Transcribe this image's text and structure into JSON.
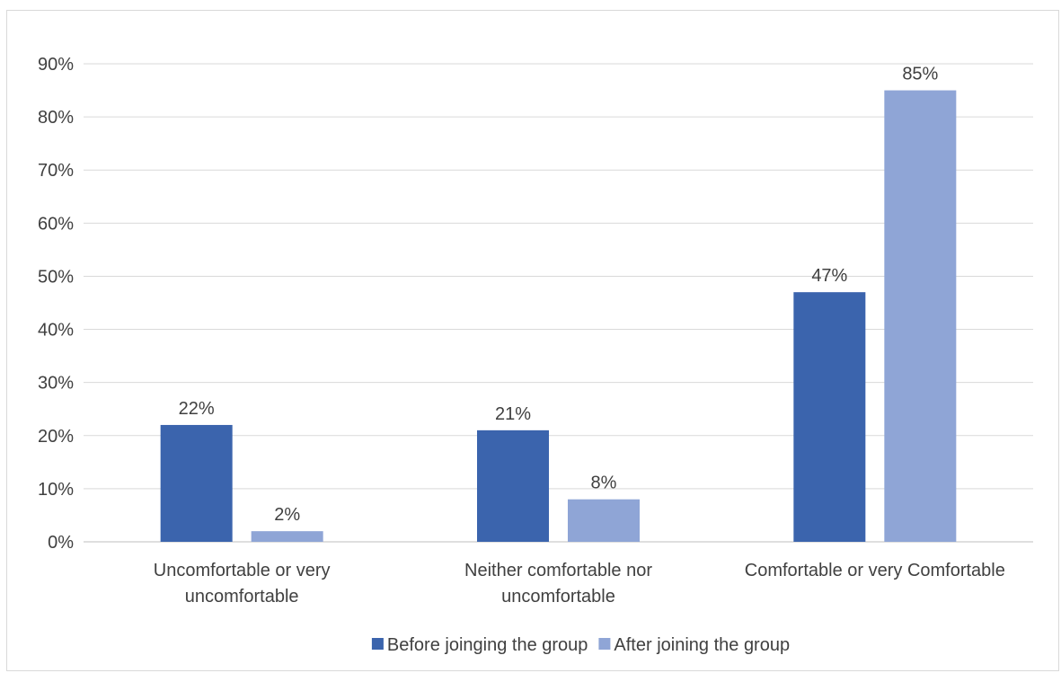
{
  "chart_data": {
    "type": "bar",
    "categories": [
      [
        "Uncomfortable or very",
        "uncomfortable"
      ],
      [
        "Neither comfortable nor",
        "uncomfortable"
      ],
      [
        "Comfortable or very Comfortable"
      ]
    ],
    "series": [
      {
        "name": "Before joinging the group",
        "values": [
          22,
          21,
          47
        ],
        "labels": [
          "22%",
          "21%",
          "47%"
        ],
        "color": "#3b64ad"
      },
      {
        "name": "After joining the group",
        "values": [
          2,
          8,
          85
        ],
        "labels": [
          "2%",
          "8%",
          "85%"
        ],
        "color": "#8fa5d6"
      }
    ],
    "ylim": [
      0,
      90
    ],
    "yticks": [
      0,
      10,
      20,
      30,
      40,
      50,
      60,
      70,
      80,
      90
    ],
    "ytick_labels": [
      "0%",
      "10%",
      "20%",
      "30%",
      "40%",
      "50%",
      "60%",
      "70%",
      "80%",
      "90%"
    ],
    "grid": true,
    "legend": "bottom-center",
    "title": "",
    "xlabel": "",
    "ylabel": ""
  }
}
